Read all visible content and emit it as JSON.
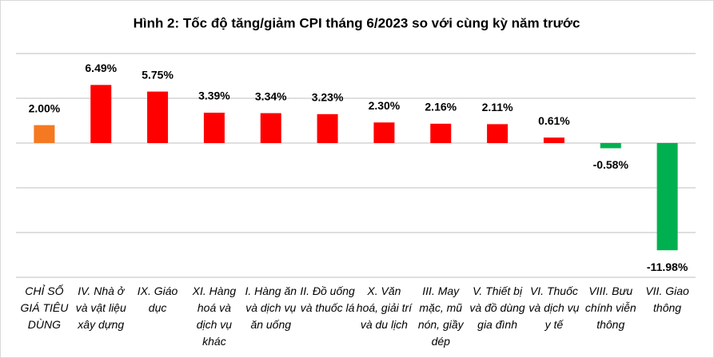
{
  "chart_data": {
    "type": "bar",
    "title": "Hình 2: Tốc độ tăng/giảm CPI tháng 6/2023 so với cùng kỳ năm trước",
    "categories": [
      "CHỈ SỐ GIÁ TIÊU DÙNG",
      "IV. Nhà ở và vật liệu xây dựng",
      "IX. Giáo dục",
      "XI. Hàng hoá và dịch vụ khác",
      "I. Hàng ăn và dịch vụ ăn uống",
      "II. Đồ uống và thuốc lá",
      "X. Văn hoá, giải trí và du lịch",
      "III. May mặc, mũ nón, giầy dép",
      "V. Thiết bị và đồ dùng gia đình",
      "VI. Thuốc và dịch vụ y tế",
      "VIII. Bưu chính viễn thông",
      "VII. Giao thông"
    ],
    "values": [
      2.0,
      6.49,
      5.75,
      3.39,
      3.34,
      3.23,
      2.3,
      2.16,
      2.11,
      0.61,
      -0.58,
      -11.98
    ],
    "value_labels": [
      "2.00%",
      "6.49%",
      "5.75%",
      "3.39%",
      "3.34%",
      "3.23%",
      "2.30%",
      "2.16%",
      "2.11%",
      "0.61%",
      "-0.58%",
      "-11.98%"
    ],
    "colors": [
      "#f47920",
      "#ff0000",
      "#ff0000",
      "#ff0000",
      "#ff0000",
      "#ff0000",
      "#ff0000",
      "#ff0000",
      "#ff0000",
      "#ff0000",
      "#00b050",
      "#00b050"
    ],
    "ylim": [
      -15,
      10
    ],
    "yticks": [
      -15,
      -10,
      -5,
      0,
      5,
      10
    ],
    "grid": true
  }
}
